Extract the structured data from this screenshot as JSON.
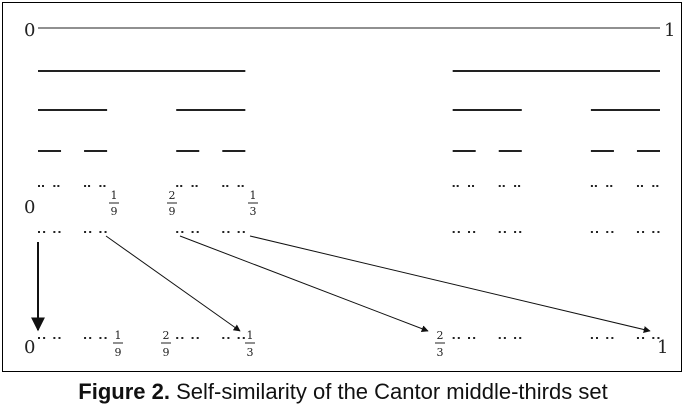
{
  "figure": {
    "caption_label": "Figure 2.",
    "caption_text": " Self-similarity of the Cantor middle-thirds set"
  },
  "labels": {
    "zero": "0",
    "one": "1",
    "ninth": {
      "num": "1",
      "den": "9"
    },
    "two_ninths": {
      "num": "2",
      "den": "9"
    },
    "third": {
      "num": "1",
      "den": "3"
    },
    "two_thirds": {
      "num": "2",
      "den": "3"
    }
  },
  "cantor": {
    "construction_levels": 5,
    "magnified_levels": [
      5,
      5,
      6
    ],
    "magnified_scale_factor": 3
  }
}
